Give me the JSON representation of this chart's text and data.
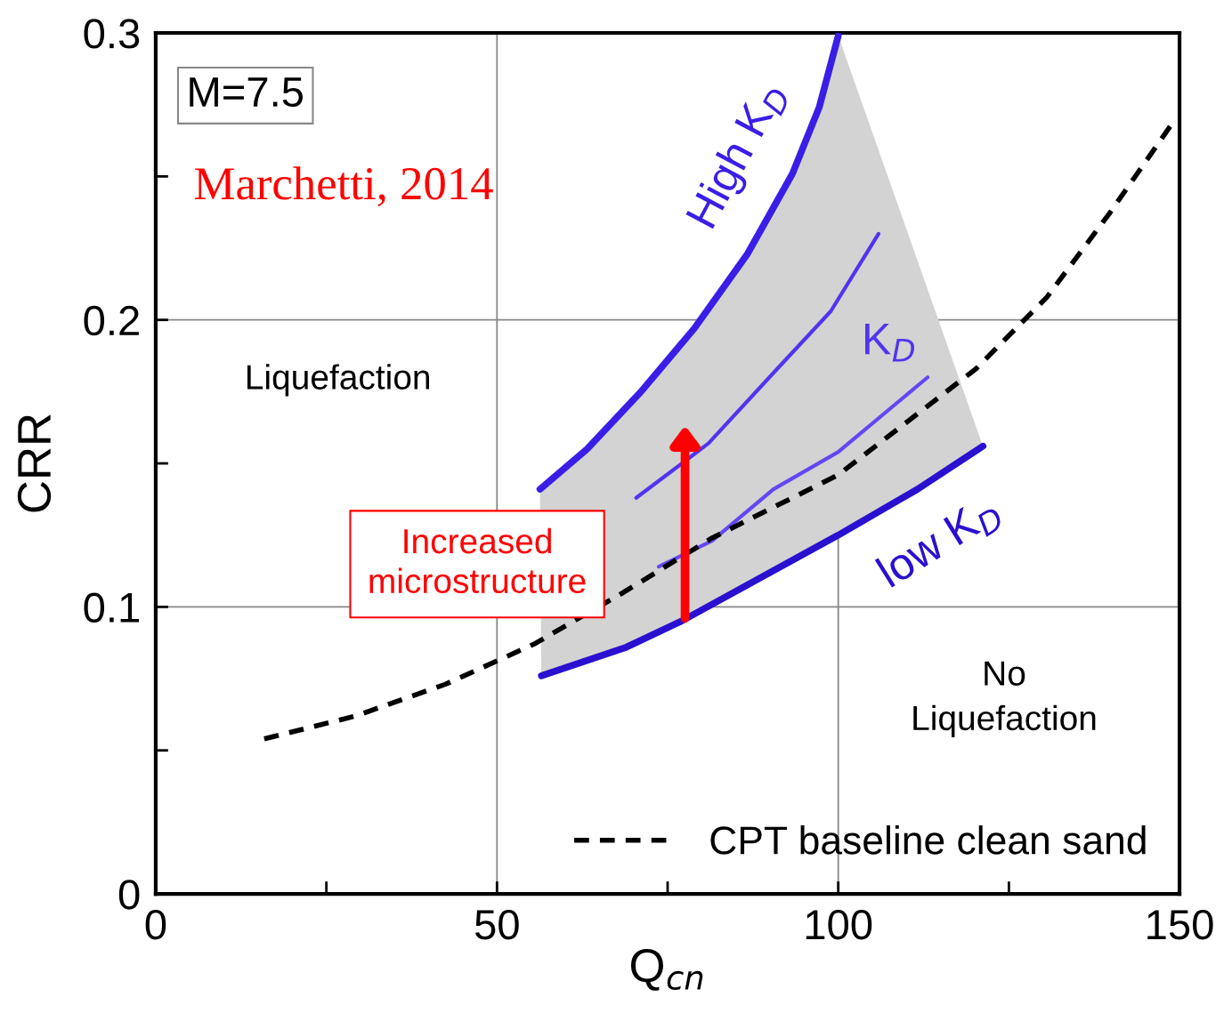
{
  "chart_data": {
    "type": "line",
    "xlabel": "Q$_{cn}$",
    "ylabel": "CRR",
    "xlim": [
      0,
      150
    ],
    "ylim": [
      0,
      0.3
    ],
    "xticks": [
      0,
      {
        "value": 25,
        "label": null
      },
      50,
      {
        "value": 75,
        "label": null
      },
      100,
      {
        "value": 125,
        "label": null
      },
      150
    ],
    "yticks": [
      0,
      {
        "value": 0.05,
        "label": null
      },
      0.1,
      {
        "value": 0.15,
        "label": null
      },
      0.2,
      {
        "value": 0.25,
        "label": null
      },
      0.3
    ],
    "grid": true,
    "legend": "bottom right",
    "series": [
      {
        "name": "High K$_{D}$",
        "color": "#3a1ee6",
        "x": [
          56.3,
          63.2,
          71.1,
          78.9,
          86.7,
          93.3,
          97.2,
          100.0
        ],
        "values": [
          0.141,
          0.155,
          0.175,
          0.197,
          0.223,
          0.251,
          0.274,
          0.299
        ]
      },
      {
        "name": "K$_{D}$",
        "color": "#5035ee",
        "x": [
          70.4,
          81.0,
          90.3,
          98.9,
          105.9
        ],
        "values": [
          0.138,
          0.157,
          0.181,
          0.203,
          0.23
        ]
      },
      {
        "color": "#6248f2",
        "x": [
          73.7,
          81.5,
          90.5,
          100.0,
          113.1
        ],
        "values": [
          0.114,
          0.123,
          0.141,
          0.154,
          0.18
        ]
      },
      {
        "name": "low K$_{D}$",
        "color": "#2a10d0",
        "x": [
          56.5,
          69.0,
          77.0,
          100.0,
          111.6,
          121.2
        ],
        "values": [
          0.076,
          0.086,
          0.095,
          0.125,
          0.141,
          0.156
        ]
      },
      {
        "name": "CPT baseline clean sand",
        "color": "#000000",
        "line_style": "dashed",
        "x": [
          15.9,
          29.3,
          42.4,
          55.4,
          68.5,
          81.5,
          100.0,
          120.2,
          130.6,
          139.7,
          148.8
        ],
        "values": [
          0.054,
          0.062,
          0.073,
          0.087,
          0.105,
          0.124,
          0.146,
          0.183,
          0.208,
          0.237,
          0.268
        ]
      }
    ],
    "annotations": [
      "M=7.5",
      "Marchetti, 2014",
      "Liquefaction",
      "No\nLiquefaction",
      "Increased microstructure"
    ]
  }
}
